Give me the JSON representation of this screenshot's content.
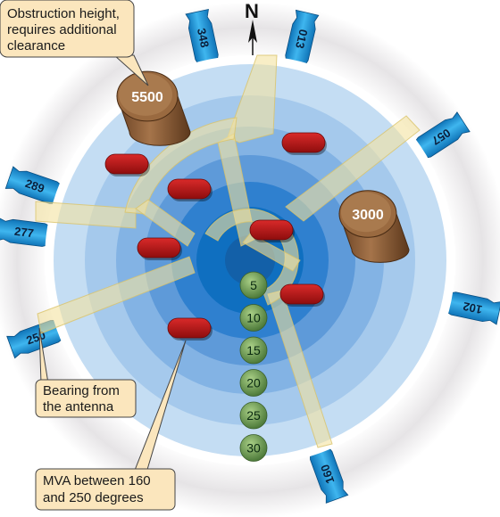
{
  "north_label": "N",
  "bearings": [
    {
      "label": "013",
      "deg": 13
    },
    {
      "label": "057",
      "deg": 57
    },
    {
      "label": "102",
      "deg": 102
    },
    {
      "label": "160",
      "deg": 160
    },
    {
      "label": "250",
      "deg": 250
    },
    {
      "label": "277",
      "deg": 277
    },
    {
      "label": "289",
      "deg": 289
    },
    {
      "label": "348",
      "deg": 348
    }
  ],
  "range_rings": [
    "5",
    "10",
    "15",
    "20",
    "25",
    "30"
  ],
  "obstructions": [
    {
      "label": "5500"
    },
    {
      "label": "3000"
    }
  ],
  "callouts": {
    "obstruction": [
      "Obstruction height,",
      "requires additional",
      "clearance"
    ],
    "bearing": [
      "Bearing from",
      "the antenna"
    ],
    "mva": [
      "MVA between 160",
      "and 250 degrees"
    ]
  },
  "colors": {
    "ring_outer": "#c2dcf3",
    "ring_inner": "#0f6fc0",
    "tab": "#1a9bdc",
    "corridor": "#f3e3a0",
    "obstruction": "#8a5a34",
    "marker": "#b51818",
    "range_marker": "#6e9a52",
    "callout_fill": "#fbe6bd"
  }
}
